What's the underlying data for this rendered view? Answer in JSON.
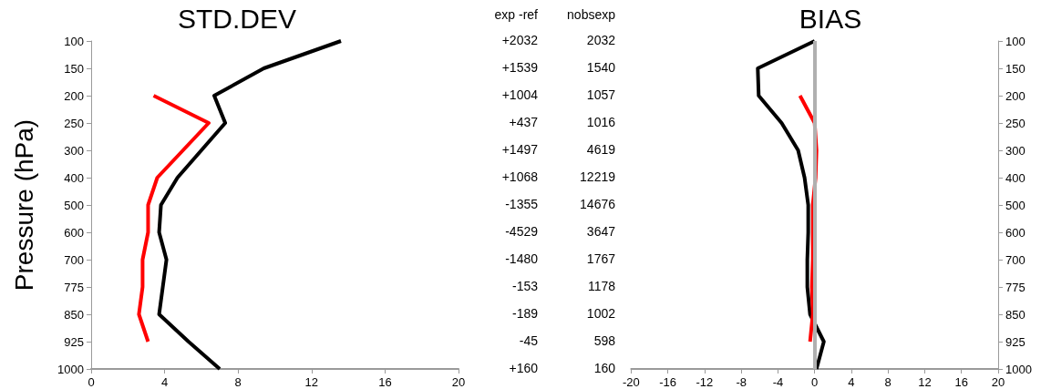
{
  "chart_data": [
    {
      "type": "line",
      "title": "STD.DEV",
      "ylabel": "Pressure (hPa)",
      "orientation": "horizontal",
      "categories": [
        "100",
        "150",
        "200",
        "250",
        "300",
        "400",
        "500",
        "600",
        "700",
        "775",
        "850",
        "925",
        "1000"
      ],
      "xlim": [
        0,
        20
      ],
      "xticks": [
        0,
        4,
        8,
        12,
        16,
        20
      ],
      "series": [
        {
          "color": "#000000",
          "values": [
            13.6,
            9.4,
            6.7,
            7.3,
            6.0,
            4.7,
            3.8,
            3.7,
            4.1,
            3.9,
            3.7,
            5.3,
            7.0
          ]
        },
        {
          "color": "#ff0000",
          "values": [
            null,
            null,
            3.4,
            6.4,
            5.0,
            3.6,
            3.1,
            3.1,
            2.8,
            2.8,
            2.6,
            3.1,
            null
          ]
        }
      ]
    },
    {
      "type": "other",
      "annotations": [
        "exp -ref",
        "nobsexp",
        "+2032",
        "2032",
        "+1539",
        "1540",
        "+1004",
        "1057",
        "+437",
        "1016",
        "+1497",
        "4619",
        "+1068",
        "12219",
        "-1355",
        "14676",
        "-4529",
        "3647",
        "-1480",
        "1767",
        "-153",
        "1178",
        "-189",
        "1002",
        "-45",
        "598",
        "+160",
        "160"
      ]
    },
    {
      "type": "line",
      "title": "BIAS",
      "orientation": "horizontal",
      "categories": [
        "100",
        "150",
        "200",
        "250",
        "300",
        "400",
        "500",
        "600",
        "700",
        "775",
        "850",
        "925",
        "1000"
      ],
      "xlim": [
        -20,
        20
      ],
      "xticks": [
        -20,
        -16,
        -12,
        -8,
        -4,
        0,
        4,
        8,
        12,
        16,
        20
      ],
      "ref_lines": [
        {
          "axis": "x",
          "value": 0,
          "label": null,
          "color": "#b0b0b0"
        }
      ],
      "series": [
        {
          "color": "#000000",
          "values": [
            0,
            -6.2,
            -6.1,
            -3.6,
            -1.8,
            -1.1,
            -0.7,
            -0.7,
            -0.8,
            -0.8,
            -0.5,
            1.0,
            0.2
          ]
        },
        {
          "color": "#ff0000",
          "values": [
            null,
            null,
            -1.6,
            0,
            0.2,
            0.1,
            -0.2,
            -0.2,
            -0.2,
            -0.3,
            -0.2,
            -0.5,
            null
          ]
        }
      ]
    }
  ]
}
